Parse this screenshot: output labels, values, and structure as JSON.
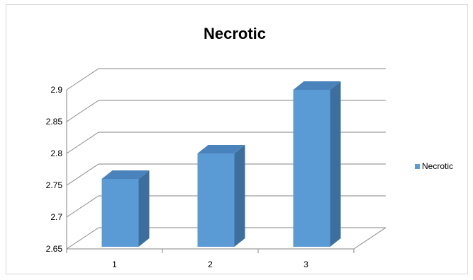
{
  "chart_data": {
    "type": "bar",
    "title": "Necrotic",
    "categories": [
      "1",
      "2",
      "3"
    ],
    "series": [
      {
        "name": "Necrotic",
        "values": [
          2.76,
          2.8,
          2.9
        ]
      }
    ],
    "ylim": [
      2.65,
      2.9
    ],
    "yticks": [
      "2.65",
      "2.7",
      "2.75",
      "2.8",
      "2.85",
      "2.9"
    ],
    "xlabel": "",
    "ylabel": "",
    "grid": true,
    "legend_position": "right",
    "three_d": true,
    "colors": {
      "bar_front": "#5b9bd5",
      "bar_side": "#3d6f9e",
      "bar_top": "#4a83bb",
      "gridline": "#868686",
      "text": "#000000"
    }
  }
}
